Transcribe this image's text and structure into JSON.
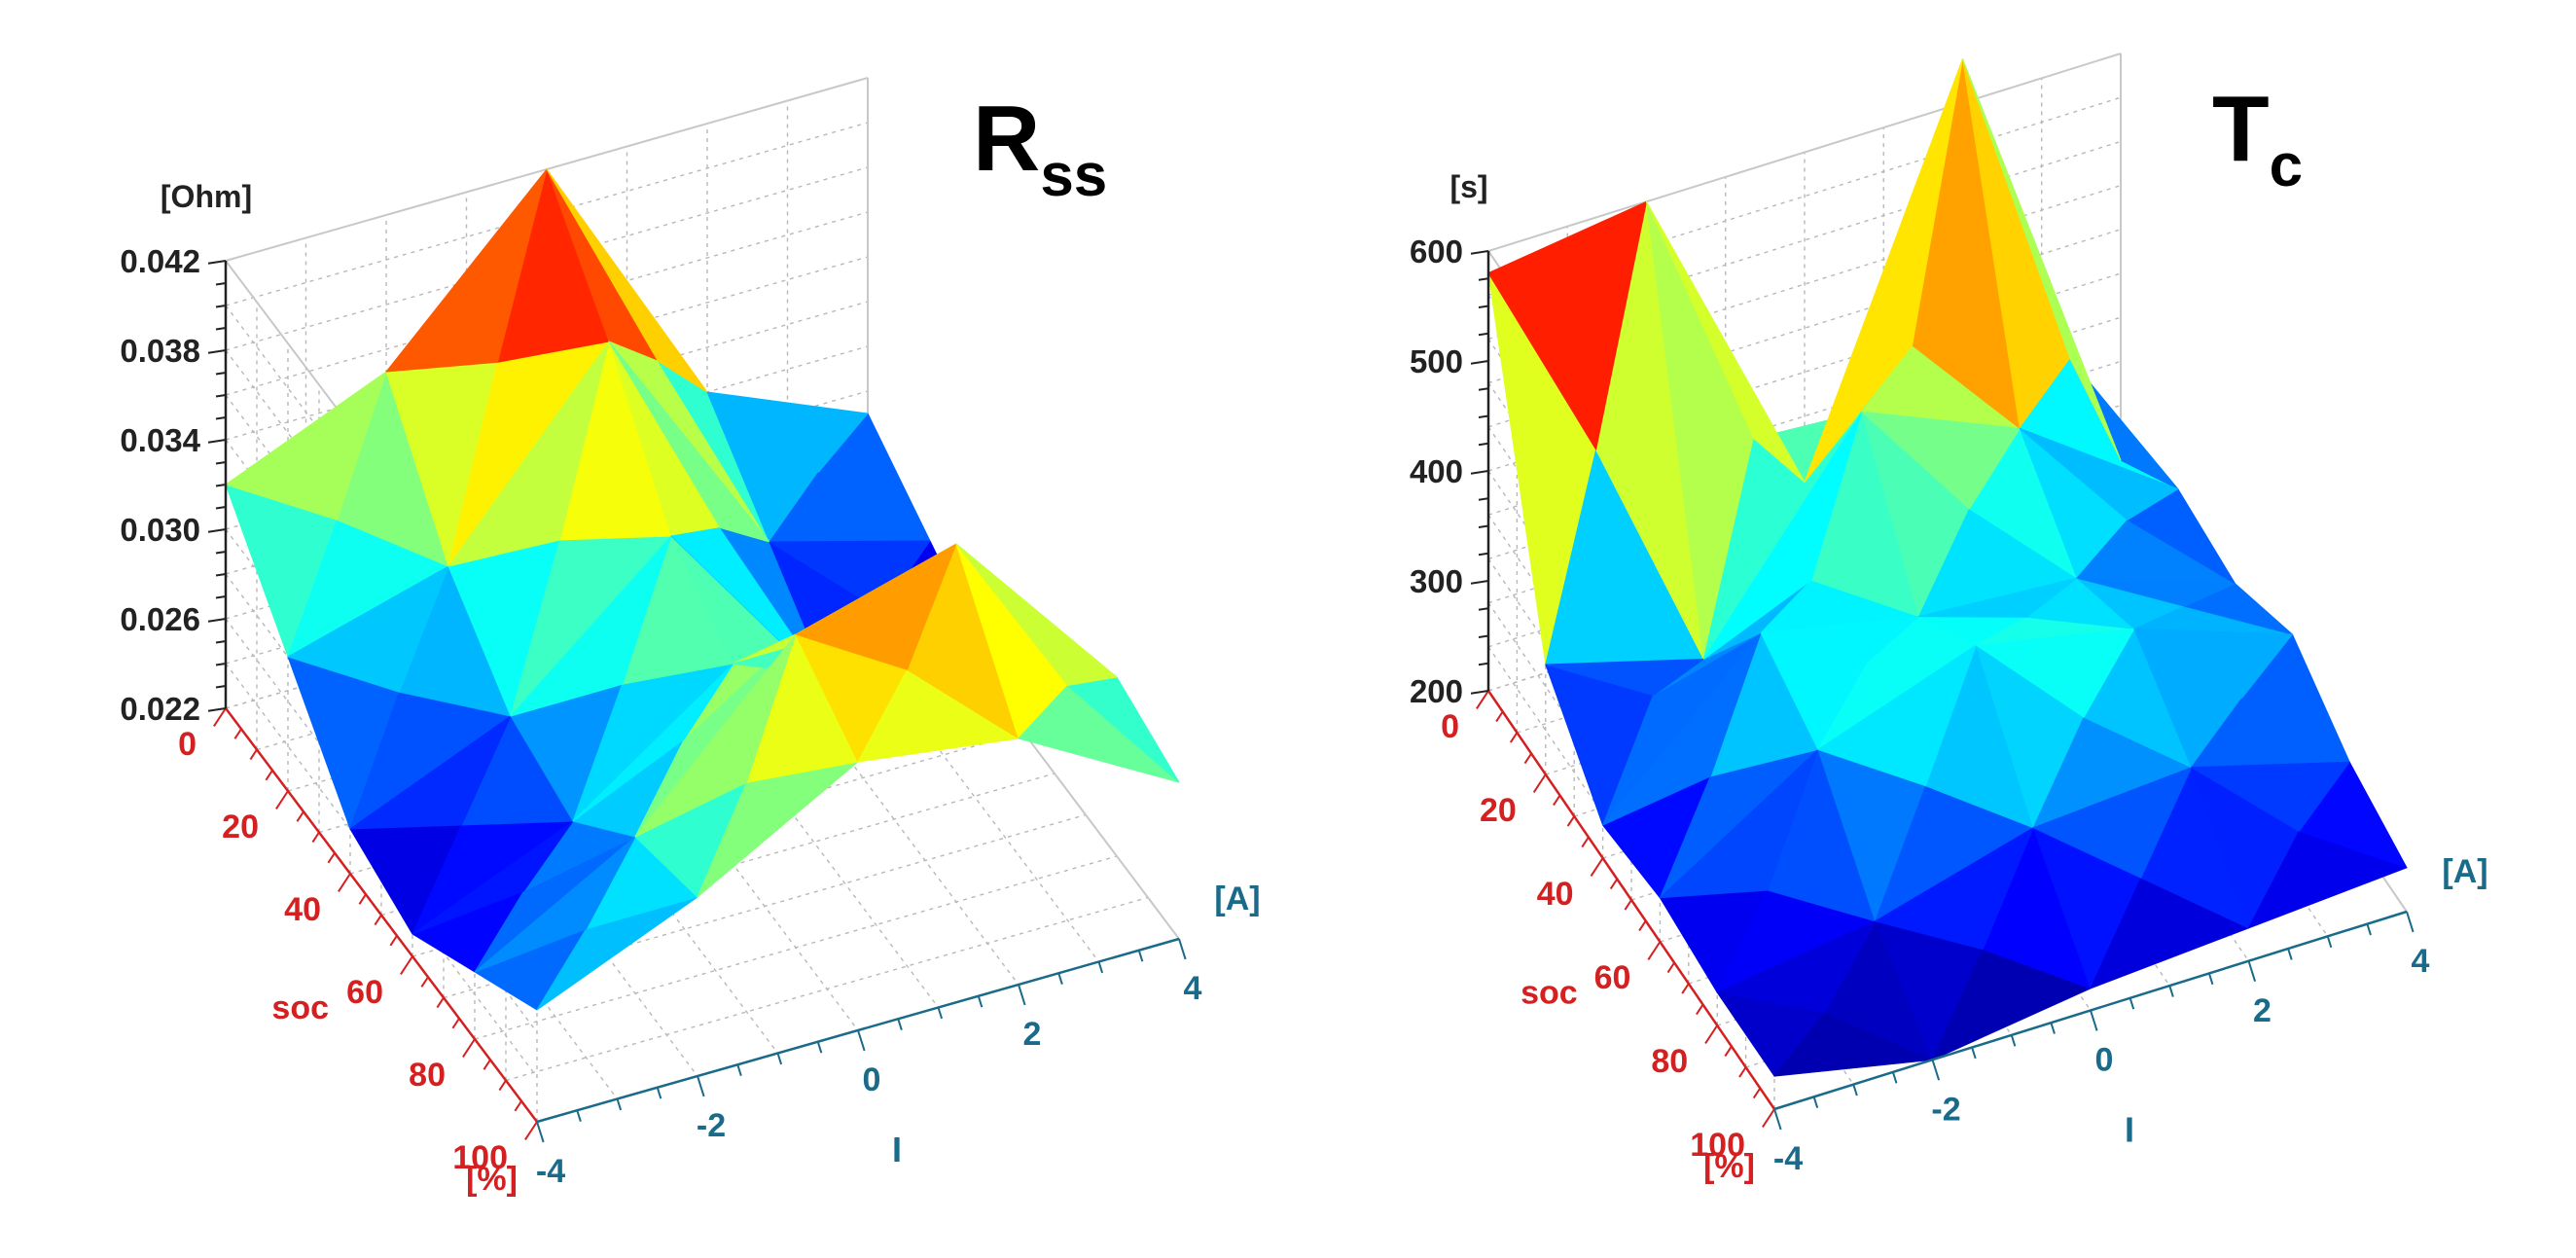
{
  "colors": {
    "soc_axis": "#d42020",
    "i_axis": "#1a6a8a",
    "z_axis": "#222222",
    "grid": "#b8b8b8",
    "colormap": "jet"
  },
  "chart_data": [
    {
      "type": "surface3d",
      "title_main": "R",
      "title_sub": "ss",
      "zunit": "[Ohm]",
      "soc_label": "soc",
      "soc_unit": "[%]",
      "i_label": "I",
      "i_unit": "[A]",
      "soc_ticks": [
        "0",
        "20",
        "40",
        "60",
        "80",
        "100"
      ],
      "i_ticks": [
        "-4",
        "-2",
        "0",
        "2",
        "4"
      ],
      "z_ticks": [
        "0.022",
        "0.026",
        "0.030",
        "0.034",
        "0.038",
        "0.042"
      ],
      "zlim": [
        0.022,
        0.042
      ],
      "i_values": [
        -4,
        -2,
        0,
        2,
        4
      ],
      "soc_values": [
        0,
        20,
        40,
        60,
        80,
        100
      ],
      "z": [
        [
          0.032,
          0.035,
          0.042,
          0.03,
          0.027
        ],
        [
          0.028,
          0.03,
          0.038,
          0.027,
          0.025
        ],
        [
          0.024,
          0.027,
          0.033,
          0.024,
          0.023
        ],
        [
          0.023,
          0.026,
          0.031,
          0.028,
          0.024
        ],
        [
          0.025,
          0.029,
          0.036,
          0.038,
          0.03
        ],
        [
          0.027,
          0.03,
          0.034,
          0.033,
          0.029
        ]
      ]
    },
    {
      "type": "surface3d",
      "title_main": "T",
      "title_sub": "c",
      "zunit": "[s]",
      "soc_label": "soc",
      "soc_unit": "[%]",
      "i_label": "I",
      "i_unit": "[A]",
      "soc_ticks": [
        "0",
        "20",
        "40",
        "60",
        "80",
        "100"
      ],
      "i_ticks": [
        "-4",
        "-2",
        "0",
        "2",
        "4"
      ],
      "z_ticks": [
        "200",
        "300",
        "400",
        "500",
        "600"
      ],
      "zlim": [
        200,
        600
      ],
      "i_values": [
        -4,
        -2,
        0,
        2,
        4
      ],
      "soc_values": [
        0,
        20,
        40,
        60,
        80,
        100
      ],
      "z": [
        [
          580,
          600,
          300,
          640,
          230
        ],
        [
          300,
          260,
          440,
          380,
          280
        ],
        [
          230,
          360,
          330,
          320,
          270
        ],
        [
          240,
          330,
          380,
          350,
          300
        ],
        [
          230,
          250,
          290,
          300,
          260
        ],
        [
          230,
          200,
          220,
          230,
          240
        ]
      ]
    }
  ]
}
